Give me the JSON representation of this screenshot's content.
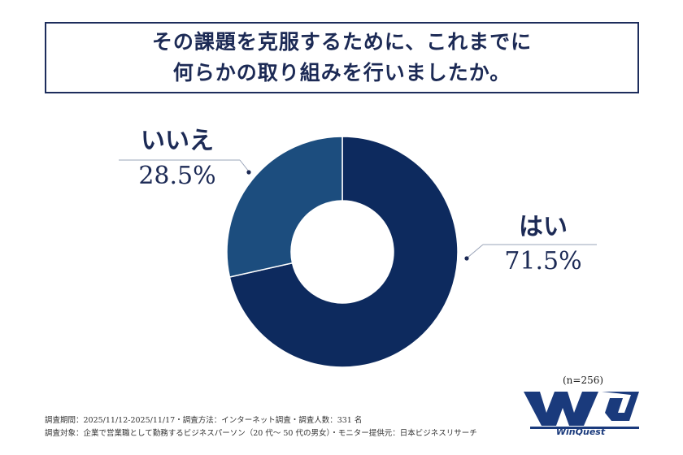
{
  "title": {
    "line1": "その課題を克服するために、これまでに",
    "line2": "何らかの取り組みを行いましたか。"
  },
  "chart_data": {
    "type": "pie",
    "variant": "donut",
    "slices": [
      {
        "label": "はい",
        "value": 71.5,
        "display": "71.5%",
        "color": "#0d2a5e"
      },
      {
        "label": "いいえ",
        "value": 28.5,
        "display": "28.5%",
        "color": "#1c4d7e"
      }
    ]
  },
  "sample_size": "(n=256)",
  "footnotes": {
    "line1": "調査期間：2025/11/12-2025/11/17・調査方法：インターネット調査・調査人数：331 名",
    "line2": "調査対象：企業で営業職として勤務するビジネスパーソン（20 代〜 50 代の男女）・モニター提供元：日本ビジネスリサーチ"
  },
  "logo": {
    "text": "WinQuest",
    "color": "#1a3a7c"
  }
}
